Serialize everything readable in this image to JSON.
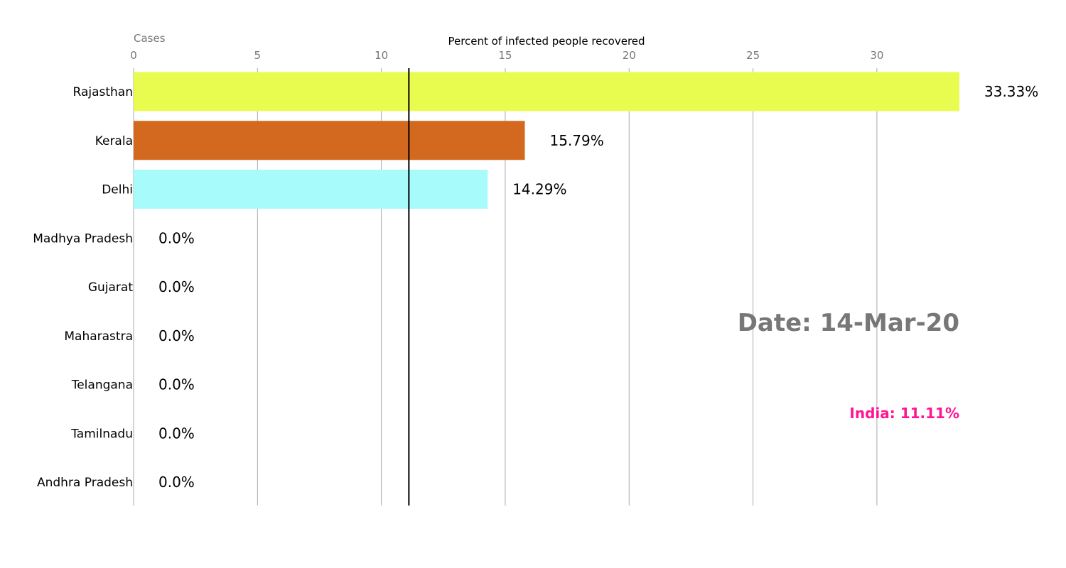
{
  "chart_data": {
    "type": "bar",
    "orientation": "horizontal",
    "xlabel": "Percent of infected people recovered",
    "corner_label": "Cases",
    "xlim": [
      0,
      33.33
    ],
    "x_ticks": [
      0,
      5,
      10,
      15,
      20,
      25,
      30
    ],
    "grid": true,
    "categories": [
      "Rajasthan",
      "Kerala",
      "Delhi",
      "Madhya Pradesh",
      "Gujarat",
      "Maharastra",
      "Telangana",
      "Tamilnadu",
      "Andhra Pradesh"
    ],
    "values": [
      33.33,
      15.79,
      14.29,
      0.0,
      0.0,
      0.0,
      0.0,
      0.0,
      0.0
    ],
    "value_labels": [
      "33.33%",
      "15.79%",
      "14.29%",
      "0.0%",
      "0.0%",
      "0.0%",
      "0.0%",
      "0.0%",
      "0.0%"
    ],
    "colors": [
      "#e8fc4f",
      "#d2691e",
      "#a8fbfb",
      "#cccccc",
      "#cccccc",
      "#cccccc",
      "#cccccc",
      "#cccccc",
      "#cccccc"
    ],
    "reference_line": {
      "value": 11.11,
      "color": "#000000"
    },
    "date_text": "Date: 14-Mar-20",
    "india_text": "India: 11.11%",
    "colors_text": {
      "date": "#777777",
      "india": "#ff1493",
      "grid": "#aaaaaa"
    }
  }
}
